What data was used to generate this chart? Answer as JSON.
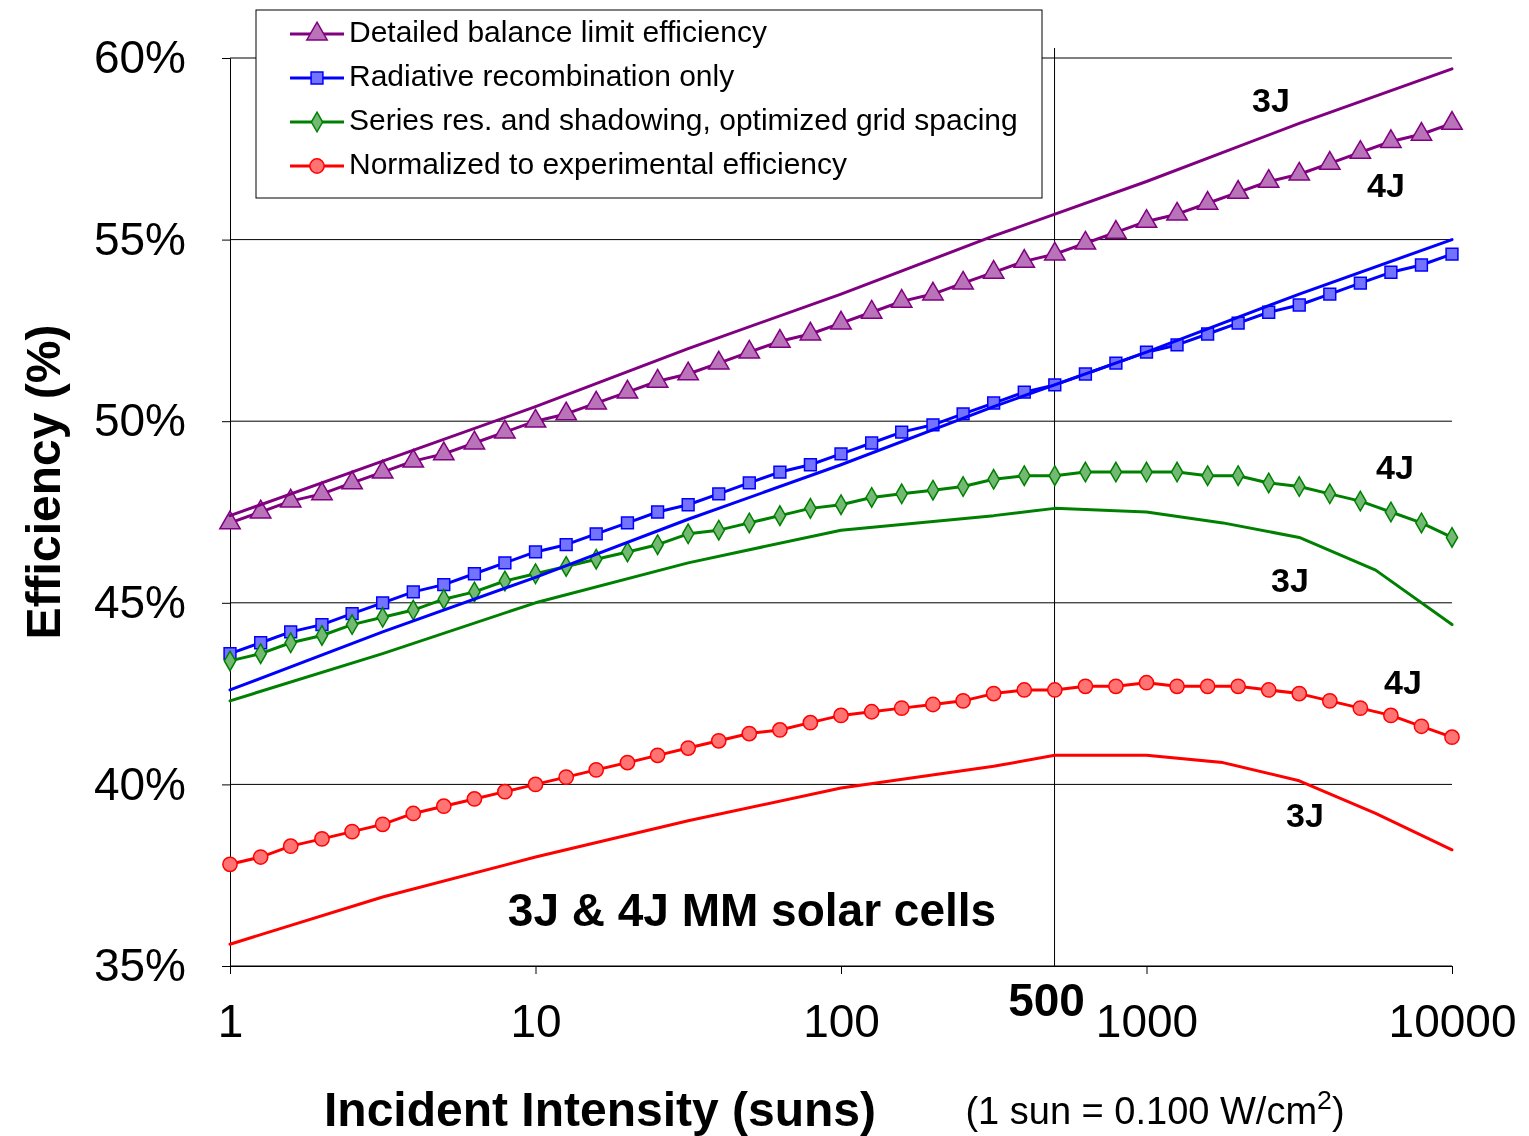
{
  "chart_data": {
    "type": "line",
    "xlabel": "Incident Intensity (suns)",
    "ylabel": "Efficiency  (%)",
    "log": "x",
    "xlim": [
      1,
      10000
    ],
    "xticks": [
      1,
      10,
      100,
      1000,
      10000
    ],
    "ylim": [
      35,
      60
    ],
    "yticks": [
      {
        "value": 35,
        "label": "35%"
      },
      {
        "value": 40,
        "label": "40%"
      },
      {
        "value": 45,
        "label": "45%"
      },
      {
        "value": 50,
        "label": "50%"
      },
      {
        "value": 55,
        "label": "55%"
      },
      {
        "value": 60,
        "label": "60%"
      }
    ],
    "grid": "y",
    "legend": "top left",
    "line_style": "solid",
    "x": [
      1,
      1.26,
      1.58,
      2,
      2.51,
      3.16,
      3.98,
      5.01,
      6.31,
      7.94,
      10,
      12.6,
      15.8,
      20,
      25.1,
      31.6,
      39.8,
      50.1,
      63.1,
      79.4,
      100,
      126,
      158,
      200,
      251,
      316,
      398,
      501,
      631,
      794,
      1000,
      1259,
      1585,
      1995,
      2512,
      3162,
      3981,
      5012,
      6310,
      7943,
      10000
    ],
    "series": [
      {
        "name": "Detailed balance limit efficiency",
        "color": "#800080",
        "marker": "triangle",
        "values": [
          47.2,
          47.5,
          47.8,
          48.0,
          48.3,
          48.6,
          48.9,
          49.1,
          49.4,
          49.7,
          50.0,
          50.2,
          50.5,
          50.8,
          51.1,
          51.3,
          51.6,
          51.9,
          52.2,
          52.4,
          52.7,
          53.0,
          53.3,
          53.5,
          53.8,
          54.1,
          54.4,
          54.6,
          54.9,
          55.2,
          55.5,
          55.7,
          56.0,
          56.3,
          56.6,
          56.8,
          57.1,
          57.4,
          57.7,
          57.9,
          58.2
        ]
      },
      {
        "name": "Radiative recombination only",
        "color": "#0000ff",
        "marker": "square",
        "values": [
          43.6,
          43.9,
          44.2,
          44.4,
          44.7,
          45.0,
          45.3,
          45.5,
          45.8,
          46.1,
          46.4,
          46.6,
          46.9,
          47.2,
          47.5,
          47.7,
          48.0,
          48.3,
          48.6,
          48.8,
          49.1,
          49.4,
          49.7,
          49.9,
          50.2,
          50.5,
          50.8,
          51.0,
          51.3,
          51.6,
          51.9,
          52.1,
          52.4,
          52.7,
          53.0,
          53.2,
          53.5,
          53.8,
          54.1,
          54.3,
          54.6
        ]
      },
      {
        "name": "Series res. and shadowing, optimized grid spacing",
        "color": "#008000",
        "marker": "diamond",
        "values": [
          43.4,
          43.6,
          43.9,
          44.1,
          44.4,
          44.6,
          44.8,
          45.1,
          45.3,
          45.6,
          45.8,
          46.0,
          46.2,
          46.4,
          46.6,
          46.9,
          47.0,
          47.2,
          47.4,
          47.6,
          47.7,
          47.9,
          48.0,
          48.1,
          48.2,
          48.4,
          48.5,
          48.5,
          48.6,
          48.6,
          48.6,
          48.6,
          48.5,
          48.5,
          48.3,
          48.2,
          48.0,
          47.8,
          47.5,
          47.2,
          46.8
        ]
      },
      {
        "name": "Normalized to experimental efficiency",
        "color": "#ff0000",
        "marker": "circle",
        "values": [
          37.8,
          38.0,
          38.3,
          38.5,
          38.7,
          38.9,
          39.2,
          39.4,
          39.6,
          39.8,
          40.0,
          40.2,
          40.4,
          40.6,
          40.8,
          41.0,
          41.2,
          41.4,
          41.5,
          41.7,
          41.9,
          42.0,
          42.1,
          42.2,
          42.3,
          42.5,
          42.6,
          42.6,
          42.7,
          42.7,
          42.8,
          42.7,
          42.7,
          42.7,
          42.6,
          42.5,
          42.3,
          42.1,
          41.9,
          41.6,
          41.3
        ]
      },
      {
        "color": "#800080",
        "marker": "none",
        "x": [
          1,
          3.16,
          10,
          31.6,
          100,
          316,
          1000,
          3162,
          10000
        ],
        "values": [
          47.4,
          48.9,
          50.4,
          52.0,
          53.5,
          55.1,
          56.6,
          58.2,
          59.7
        ]
      },
      {
        "color": "#0000ff",
        "marker": "none",
        "x": [
          1,
          3.16,
          10,
          31.6,
          100,
          316,
          1000,
          3162,
          10000
        ],
        "values": [
          42.6,
          44.2,
          45.7,
          47.3,
          48.8,
          50.4,
          51.9,
          53.5,
          55.0
        ]
      },
      {
        "color": "#008000",
        "marker": "none",
        "x": [
          1,
          3.16,
          10,
          31.6,
          100,
          316,
          501,
          1000,
          1778,
          3162,
          5623,
          10000
        ],
        "values": [
          42.3,
          43.6,
          45.0,
          46.1,
          47.0,
          47.4,
          47.6,
          47.5,
          47.2,
          46.8,
          45.9,
          44.4
        ]
      },
      {
        "color": "#ff0000",
        "marker": "none",
        "x": [
          1,
          3.16,
          10,
          31.6,
          100,
          316,
          501,
          1000,
          1778,
          3162,
          5623,
          10000
        ],
        "values": [
          35.6,
          36.9,
          38.0,
          39.0,
          39.9,
          40.5,
          40.8,
          40.8,
          40.6,
          40.1,
          39.2,
          38.2
        ]
      }
    ],
    "ref_lines": [
      {
        "axis": "x",
        "value": 500,
        "label": "500",
        "color": "#000000"
      }
    ],
    "annotations": [
      "3J & 4J MM solar cells",
      "(1 sun = 0.100 W/cm$^{2}$)",
      "3J",
      "4J",
      "4J",
      "3J",
      "4J",
      "3J"
    ]
  }
}
